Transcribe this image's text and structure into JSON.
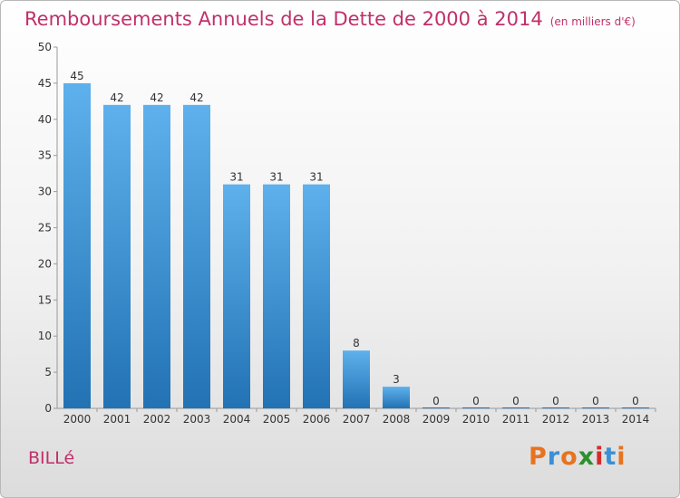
{
  "title": "Remboursements Annuels de la Dette de 2000 à 2014",
  "unit": "(en milliers d'€)",
  "commune": "BILLé",
  "logo": {
    "letters": [
      "P",
      "r",
      "o",
      "x",
      "i",
      "t",
      "i"
    ],
    "colors": [
      "#e8731f",
      "#3a8fd6",
      "#e8731f",
      "#2e8f2e",
      "#d62a2a",
      "#3a8fd6",
      "#e8731f"
    ]
  },
  "colors": {
    "bar_top": "#5eb1ec",
    "bar_bottom": "#2272b4",
    "title": "#c0306a",
    "grid": "#bbbbbb"
  },
  "chart_data": {
    "type": "bar",
    "categories": [
      "2000",
      "2001",
      "2002",
      "2003",
      "2004",
      "2005",
      "2006",
      "2007",
      "2008",
      "2009",
      "2010",
      "2011",
      "2012",
      "2013",
      "2014"
    ],
    "values": [
      45,
      42,
      42,
      42,
      31,
      31,
      31,
      8,
      3,
      0,
      0,
      0,
      0,
      0,
      0
    ],
    "ylim": [
      0,
      50
    ],
    "yticks": [
      0,
      5,
      10,
      15,
      20,
      25,
      30,
      35,
      40,
      45,
      50
    ],
    "grid": false
  }
}
